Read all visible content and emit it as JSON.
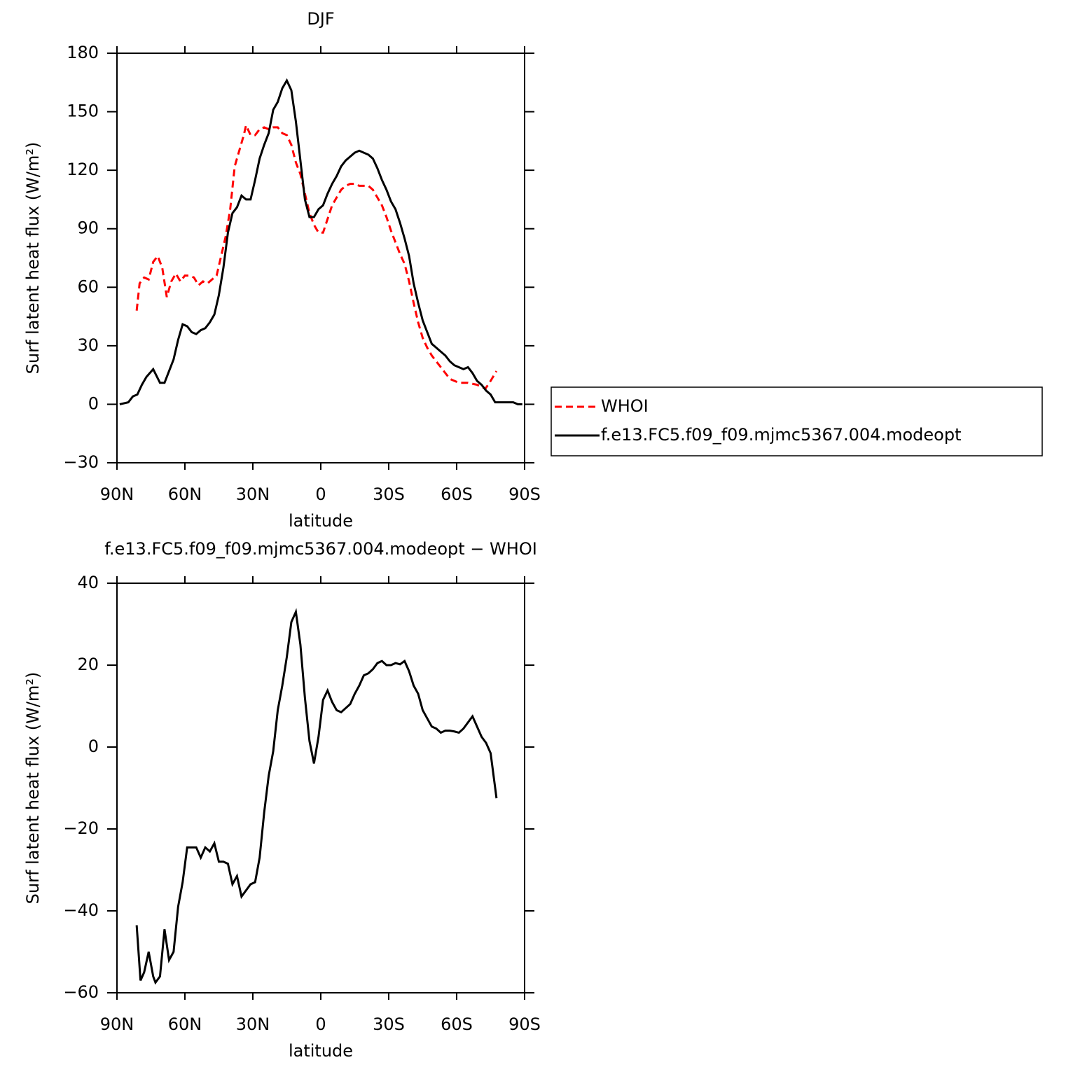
{
  "chart_data": [
    {
      "type": "line",
      "title": "DJF",
      "xlabel": "latitude",
      "ylabel": "Surf latent heat flux (W/m²)",
      "xlim": [
        90,
        -90
      ],
      "ylim": [
        -30,
        180
      ],
      "xticks": [
        {
          "value": 90,
          "label": "90N"
        },
        {
          "value": 60,
          "label": "60N"
        },
        {
          "value": 30,
          "label": "30N"
        },
        0,
        {
          "value": -30,
          "label": "30S"
        },
        {
          "value": -60,
          "label": "60S"
        },
        {
          "value": -90,
          "label": "90S"
        }
      ],
      "yticks": [
        {
          "value": -30,
          "label": "−30"
        },
        0,
        30,
        60,
        90,
        120,
        150,
        180
      ],
      "legend": "right",
      "series": [
        {
          "name": "WHOI",
          "color": "#ff0000",
          "dash": true,
          "x": [
            81.3,
            80,
            78,
            76,
            74,
            72,
            70,
            68,
            66,
            64,
            62,
            60,
            58,
            56,
            54,
            52,
            50,
            48,
            46,
            44,
            42,
            40,
            38,
            36,
            34,
            33,
            31,
            29,
            27,
            25,
            23,
            21,
            19,
            17,
            15,
            13,
            11,
            9,
            7,
            5,
            3,
            1,
            -1,
            -3,
            -5,
            -7,
            -9,
            -11,
            -13,
            -15,
            -17,
            -19,
            -21,
            -23,
            -25,
            -27,
            -29,
            -31,
            -33,
            -35,
            -37,
            -39,
            -41,
            -43,
            -45,
            -47,
            -49,
            -51,
            -53,
            -55,
            -57,
            -59,
            -61,
            -63,
            -65,
            -69,
            -72.7,
            -75,
            -77.6
          ],
          "values": [
            48,
            62,
            65,
            64,
            73,
            76,
            70,
            55,
            63,
            67,
            63,
            66,
            66,
            65,
            61,
            63,
            62,
            64,
            66,
            76,
            86,
            100,
            122,
            130,
            138,
            143,
            138,
            138,
            141,
            142,
            141,
            142,
            142,
            139,
            138,
            133,
            124,
            118,
            108,
            98,
            92,
            88,
            88,
            95,
            102,
            106,
            110,
            112,
            113,
            113,
            112,
            112,
            112,
            110,
            106,
            102,
            96,
            89,
            83,
            77,
            72,
            63,
            52,
            42,
            34,
            29,
            25,
            22,
            19,
            16,
            13,
            12,
            11,
            11,
            11,
            10,
            8,
            12,
            17
          ]
        },
        {
          "name": "f.e13.FC5.f09_f09.mjmc5367.004.modeopt",
          "color": "#000000",
          "dash": false,
          "x": [
            88.8,
            85,
            83,
            81,
            79,
            77,
            74,
            71,
            69,
            67,
            65,
            63,
            61,
            59,
            57,
            55,
            53,
            51,
            49,
            47,
            45,
            43,
            41,
            39,
            37,
            35,
            33,
            31,
            29,
            27,
            25,
            23,
            21,
            19,
            17,
            15,
            13,
            11,
            9,
            7,
            5,
            3,
            1,
            -1,
            -3,
            -5,
            -7,
            -9,
            -11,
            -13,
            -15,
            -17,
            -19,
            -21,
            -23,
            -25,
            -27,
            -29,
            -31,
            -33,
            -35,
            -37,
            -39,
            -41,
            -43,
            -45,
            -47,
            -49,
            -51,
            -53,
            -55,
            -57,
            -59,
            -61,
            -63,
            -65,
            -67,
            -69,
            -71,
            -73,
            -75,
            -77,
            -79,
            -81,
            -83,
            -85,
            -87,
            -89
          ],
          "values": [
            0,
            1,
            4,
            5,
            10,
            14,
            18,
            11,
            11,
            17,
            23,
            33,
            41,
            40,
            37,
            36,
            38,
            39,
            42,
            46,
            56,
            70,
            88,
            98,
            101,
            107,
            105,
            105,
            115,
            126,
            133,
            139,
            151,
            155,
            162,
            166,
            161,
            145,
            125,
            105,
            96,
            96,
            100,
            102,
            108,
            113,
            117,
            122,
            125,
            127,
            129,
            130,
            129,
            128,
            126,
            121,
            115,
            110,
            104,
            100,
            93,
            85,
            76,
            62,
            52,
            43,
            37,
            31,
            29,
            27,
            25,
            22,
            20,
            19,
            18,
            19,
            16,
            12,
            10,
            7,
            5,
            1,
            1,
            1,
            1,
            1,
            0,
            0
          ]
        }
      ]
    },
    {
      "type": "line",
      "title": "f.e13.FC5.f09_f09.mjmc5367.004.modeopt − WHOI",
      "xlabel": "latitude",
      "ylabel": "Surf latent heat flux (W/m²)",
      "xlim": [
        90,
        -90
      ],
      "ylim": [
        -60,
        40
      ],
      "xticks": [
        {
          "value": 90,
          "label": "90N"
        },
        {
          "value": 60,
          "label": "60N"
        },
        {
          "value": 30,
          "label": "30N"
        },
        0,
        {
          "value": -30,
          "label": "30S"
        },
        {
          "value": -60,
          "label": "60S"
        },
        {
          "value": -90,
          "label": "90S"
        }
      ],
      "yticks": [
        {
          "value": -60,
          "label": "−60"
        },
        {
          "value": -40,
          "label": "−40"
        },
        {
          "value": -20,
          "label": "−20"
        },
        0,
        20,
        40
      ],
      "series": [
        {
          "color": "#000000",
          "dash": false,
          "x": [
            81.3,
            79.6,
            78,
            76,
            74,
            73,
            71,
            69,
            67,
            65,
            63,
            61,
            59,
            57,
            55,
            53,
            51,
            49,
            47,
            45,
            43,
            41,
            39,
            37,
            35,
            33,
            31,
            29,
            27,
            25,
            23,
            21,
            19,
            17,
            15,
            13,
            11,
            9,
            7,
            5,
            3,
            1,
            -1,
            -3,
            -5,
            -7,
            -9,
            -11,
            -13,
            -15,
            -17,
            -19,
            -21,
            -23,
            -25,
            -27,
            -29,
            -31,
            -33,
            -35,
            -37,
            -39,
            -41,
            -43,
            -45,
            -47,
            -49,
            -51,
            -53,
            -55,
            -57,
            -59,
            -61,
            -63,
            -65,
            -67,
            -69,
            -71,
            -73,
            -75,
            -77.6
          ],
          "values": [
            -43.5,
            -57,
            -55,
            -50,
            -56,
            -57.5,
            -56,
            -44.5,
            -52,
            -50,
            -39,
            -33,
            -24.5,
            -24.5,
            -24.5,
            -27,
            -24.5,
            -25.5,
            -23.5,
            -28,
            -28,
            -28.5,
            -33.5,
            -31.5,
            -36.5,
            -35,
            -33.5,
            -33,
            -27,
            -16,
            -7,
            -1,
            9,
            15,
            22,
            30.5,
            33,
            25,
            12,
            1.5,
            -4,
            2.5,
            11.5,
            13.8,
            11,
            9,
            8.5,
            9.5,
            10.5,
            13,
            15,
            17.5,
            18,
            19,
            20.5,
            21,
            20,
            20,
            20.5,
            20.2,
            21,
            18.5,
            15,
            13,
            9,
            7,
            5,
            4.5,
            3.5,
            4,
            4,
            3.8,
            3.5,
            4.5,
            6,
            7.5,
            5,
            2.5,
            1,
            -1.5,
            -12.5
          ]
        }
      ]
    }
  ]
}
